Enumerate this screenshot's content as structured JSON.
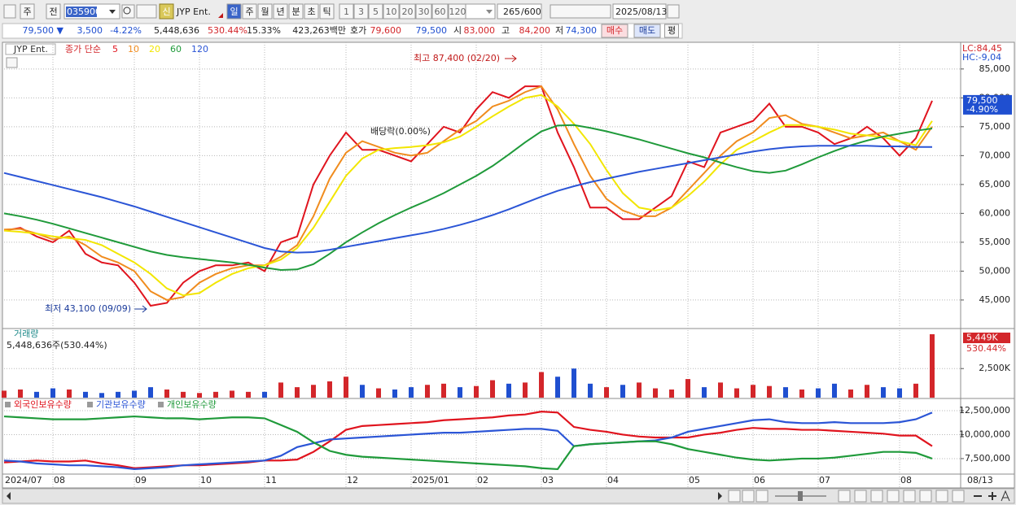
{
  "toolbar": {
    "code_kinds": [
      "주",
      "전"
    ],
    "code": "035900",
    "badge": "신",
    "name": "JYP Ent.",
    "periods": [
      "일",
      "주",
      "월",
      "년",
      "분",
      "초",
      "틱"
    ],
    "minutes": [
      "1",
      "3",
      "5",
      "10",
      "20",
      "30",
      "60",
      "120"
    ],
    "count": "265",
    "count_max": "/600",
    "date": "2025/08/13"
  },
  "quote": [
    "79,500 ▼",
    "3,500",
    "-4.22%",
    "5,448,636",
    "530.44%",
    "15.33%",
    "423,263백만",
    "호가",
    "79,600",
    "79,500",
    "시",
    "83,000",
    "고",
    "84,200",
    "저",
    "74,300",
    "매수",
    "매도",
    "평"
  ],
  "chart_data": [
    {
      "type": "line",
      "title": "JYP Ent.",
      "legend_title": "종가 단순",
      "lc": "LC:84,45",
      "hc": "HC:-9,04",
      "last_label": "79,500",
      "last_change": "-4.90%",
      "annotations": [
        "최고 87,400 (02/20)",
        "최저 43,100 (09/09)",
        "배당락(0.00%)"
      ],
      "grid": true,
      "categories": [
        "2024/07",
        null,
        null,
        "08",
        null,
        null,
        null,
        null,
        "09",
        null,
        null,
        null,
        "10",
        null,
        null,
        null,
        "11",
        null,
        null,
        null,
        null,
        "12",
        null,
        null,
        null,
        "2025/01",
        null,
        null,
        null,
        "02",
        null,
        null,
        null,
        "03",
        null,
        null,
        null,
        "04",
        null,
        null,
        null,
        null,
        "05",
        null,
        null,
        null,
        "06",
        null,
        null,
        null,
        "07",
        null,
        null,
        null,
        null,
        "08",
        null,
        null
      ],
      "end_label": "08/13",
      "ylim": [
        40200,
        89200
      ],
      "yticks": [
        {
          "value": 45000,
          "label": "45,000"
        },
        {
          "value": 50000,
          "label": "50,000"
        },
        {
          "value": 55000,
          "label": "55,000"
        },
        {
          "value": 60000,
          "label": "60,000"
        },
        {
          "value": 65000,
          "label": "65,000"
        },
        {
          "value": 70000,
          "label": "70,000"
        },
        {
          "value": 75000,
          "label": "75,000"
        },
        {
          "value": 80000,
          "label": "80,000"
        },
        {
          "value": 85000,
          "label": "85,000"
        }
      ],
      "series": [
        {
          "name": "5",
          "color": "#e0141e",
          "values": [
            57000,
            57500,
            56000,
            55000,
            57000,
            53000,
            51500,
            51000,
            48000,
            44000,
            44500,
            48000,
            50000,
            51000,
            51000,
            51500,
            50000,
            55000,
            56000,
            65000,
            70000,
            74000,
            71000,
            71000,
            70000,
            69000,
            72000,
            75000,
            74000,
            78000,
            81000,
            80000,
            82000,
            82000,
            74000,
            68000,
            61000,
            61000,
            59000,
            59000,
            61000,
            63000,
            69000,
            68000,
            74000,
            75000,
            76000,
            79000,
            75000,
            75000,
            74000,
            72000,
            73000,
            75000,
            73000,
            70000,
            73000,
            79500
          ]
        },
        {
          "name": "10",
          "color": "#f08c1e",
          "values": [
            57200,
            57300,
            56500,
            55500,
            56000,
            54500,
            52500,
            51500,
            50000,
            46500,
            45000,
            45500,
            48000,
            49500,
            50500,
            51000,
            51000,
            52500,
            54500,
            59500,
            66000,
            70500,
            72500,
            71500,
            70500,
            70000,
            70500,
            72500,
            74500,
            76000,
            78500,
            79500,
            81000,
            82000,
            78000,
            72000,
            66500,
            62500,
            60500,
            59500,
            59500,
            61000,
            64000,
            67000,
            70000,
            72500,
            74000,
            76500,
            77000,
            75500,
            75000,
            74000,
            73000,
            73500,
            74000,
            72500,
            71000,
            75000
          ]
        },
        {
          "name": "20",
          "color": "#f2e600",
          "values": [
            57000,
            56800,
            56500,
            56000,
            55700,
            55400,
            54500,
            53000,
            51500,
            49500,
            47000,
            45800,
            46200,
            48000,
            49500,
            50500,
            51000,
            52000,
            54000,
            57500,
            62000,
            66500,
            69500,
            71000,
            71300,
            71500,
            71800,
            72300,
            73300,
            75000,
            76800,
            78500,
            80000,
            80500,
            78500,
            75500,
            72000,
            67500,
            63500,
            61000,
            60500,
            61000,
            63000,
            65500,
            68500,
            71000,
            72500,
            74000,
            75300,
            75300,
            75000,
            74500,
            73800,
            73500,
            73200,
            72500,
            71800,
            76000
          ]
        },
        {
          "name": "60",
          "color": "#1f9a3a",
          "values": [
            60000,
            59500,
            58900,
            58200,
            57400,
            56600,
            55800,
            55000,
            54200,
            53400,
            52800,
            52400,
            52100,
            51800,
            51500,
            51100,
            50600,
            50200,
            50300,
            51200,
            53000,
            55000,
            56700,
            58300,
            59700,
            61000,
            62200,
            63500,
            65000,
            66500,
            68200,
            70200,
            72300,
            74200,
            75200,
            75300,
            74800,
            74200,
            73500,
            72800,
            72000,
            71200,
            70400,
            69700,
            68800,
            68000,
            67300,
            67000,
            67400,
            68500,
            69700,
            70800,
            71800,
            72600,
            73300,
            73800,
            74300,
            74700
          ]
        },
        {
          "name": "120",
          "color": "#2b55d6",
          "values": [
            67000,
            66300,
            65600,
            64900,
            64200,
            63500,
            62800,
            62000,
            61200,
            60300,
            59400,
            58500,
            57600,
            56700,
            55800,
            54900,
            54000,
            53400,
            53200,
            53300,
            53700,
            54200,
            54700,
            55200,
            55700,
            56200,
            56700,
            57300,
            58000,
            58800,
            59700,
            60700,
            61800,
            62900,
            63900,
            64700,
            65400,
            66000,
            66600,
            67200,
            67700,
            68200,
            68700,
            69200,
            69700,
            70200,
            70700,
            71100,
            71400,
            71600,
            71700,
            71700,
            71700,
            71700,
            71600,
            71600,
            71500,
            71500
          ]
        }
      ]
    },
    {
      "type": "bar",
      "title": "거래량",
      "subtitle": "5,448,636주(530.44%)",
      "last_change": "530.44%",
      "up_color": "#d3262a",
      "down_color": "#1f4fd0",
      "ylim": [
        0,
        5800
      ],
      "yticks": [
        {
          "value": 2500,
          "label": "2,500K"
        }
      ],
      "values": [
        600,
        700,
        500,
        800,
        700,
        500,
        400,
        500,
        600,
        900,
        700,
        500,
        400,
        500,
        600,
        500,
        500,
        1300,
        900,
        1100,
        1400,
        1800,
        1100,
        800,
        700,
        900,
        1100,
        1200,
        900,
        1000,
        1500,
        1200,
        1300,
        2200,
        1800,
        2500,
        1200,
        900,
        1100,
        1300,
        800,
        700,
        1600,
        900,
        1300,
        800,
        1100,
        1000,
        900,
        700,
        800,
        1200,
        700,
        1100,
        900,
        800,
        1200,
        5449
      ],
      "value_labels": [
        null,
        null,
        null,
        null,
        null,
        null,
        null,
        null,
        null,
        null,
        null,
        null,
        null,
        null,
        null,
        null,
        null,
        null,
        null,
        null,
        null,
        null,
        null,
        null,
        null,
        null,
        null,
        null,
        null,
        null,
        null,
        null,
        null,
        null,
        null,
        null,
        null,
        null,
        null,
        null,
        null,
        null,
        null,
        null,
        null,
        null,
        null,
        null,
        null,
        null,
        null,
        null,
        null,
        null,
        null,
        null,
        null,
        "5,449K"
      ]
    },
    {
      "type": "line",
      "ylim": [
        5970000,
        13600000
      ],
      "yticks": [
        {
          "value": 7500000,
          "label": "7,500,000"
        },
        {
          "value": 10000000,
          "label": "10,000,000"
        },
        {
          "value": 12500000,
          "label": "12,500,000"
        }
      ],
      "series": [
        {
          "name": "외국인보유수량",
          "color": "#e0141e",
          "values": [
            7100000,
            7200000,
            7300000,
            7200000,
            7200000,
            7300000,
            7000000,
            6800000,
            6500000,
            6600000,
            6700000,
            6800000,
            6800000,
            6900000,
            7000000,
            7100000,
            7300000,
            7300000,
            7400000,
            8200000,
            9300000,
            10500000,
            10900000,
            11000000,
            11100000,
            11200000,
            11300000,
            11500000,
            11600000,
            11700000,
            11800000,
            12000000,
            12100000,
            12400000,
            12300000,
            10800000,
            10500000,
            10300000,
            10000000,
            9800000,
            9700000,
            9700000,
            9700000,
            10000000,
            10200000,
            10500000,
            10700000,
            10600000,
            10600000,
            10500000,
            10500000,
            10400000,
            10300000,
            10200000,
            10100000,
            9900000,
            9900000,
            8800000
          ]
        },
        {
          "name": "기관보유수량",
          "color": "#2b55d6",
          "values": [
            7300000,
            7200000,
            7000000,
            6900000,
            6800000,
            6800000,
            6700000,
            6600000,
            6400000,
            6500000,
            6600000,
            6800000,
            6900000,
            7000000,
            7100000,
            7200000,
            7300000,
            7800000,
            8700000,
            9100000,
            9500000,
            9600000,
            9700000,
            9800000,
            9900000,
            10000000,
            10100000,
            10200000,
            10200000,
            10300000,
            10400000,
            10500000,
            10600000,
            10600000,
            10400000,
            8800000,
            9000000,
            9100000,
            9200000,
            9300000,
            9400000,
            9700000,
            10300000,
            10600000,
            10900000,
            11200000,
            11500000,
            11600000,
            11300000,
            11200000,
            11200000,
            11300000,
            11200000,
            11200000,
            11200000,
            11300000,
            11600000,
            12300000
          ]
        },
        {
          "name": "개인보유수량",
          "color": "#1f9a3a",
          "values": [
            11900000,
            11800000,
            11700000,
            11600000,
            11600000,
            11600000,
            11700000,
            11800000,
            11900000,
            11800000,
            11700000,
            11700000,
            11600000,
            11700000,
            11800000,
            11800000,
            11700000,
            11000000,
            10300000,
            9200000,
            8300000,
            7900000,
            7700000,
            7600000,
            7500000,
            7400000,
            7300000,
            7200000,
            7100000,
            7000000,
            6900000,
            6800000,
            6700000,
            6500000,
            6400000,
            8800000,
            9000000,
            9100000,
            9200000,
            9300000,
            9300000,
            9000000,
            8500000,
            8200000,
            7900000,
            7600000,
            7400000,
            7300000,
            7400000,
            7500000,
            7500000,
            7600000,
            7800000,
            8000000,
            8200000,
            8200000,
            8100000,
            7500000
          ]
        }
      ]
    }
  ]
}
